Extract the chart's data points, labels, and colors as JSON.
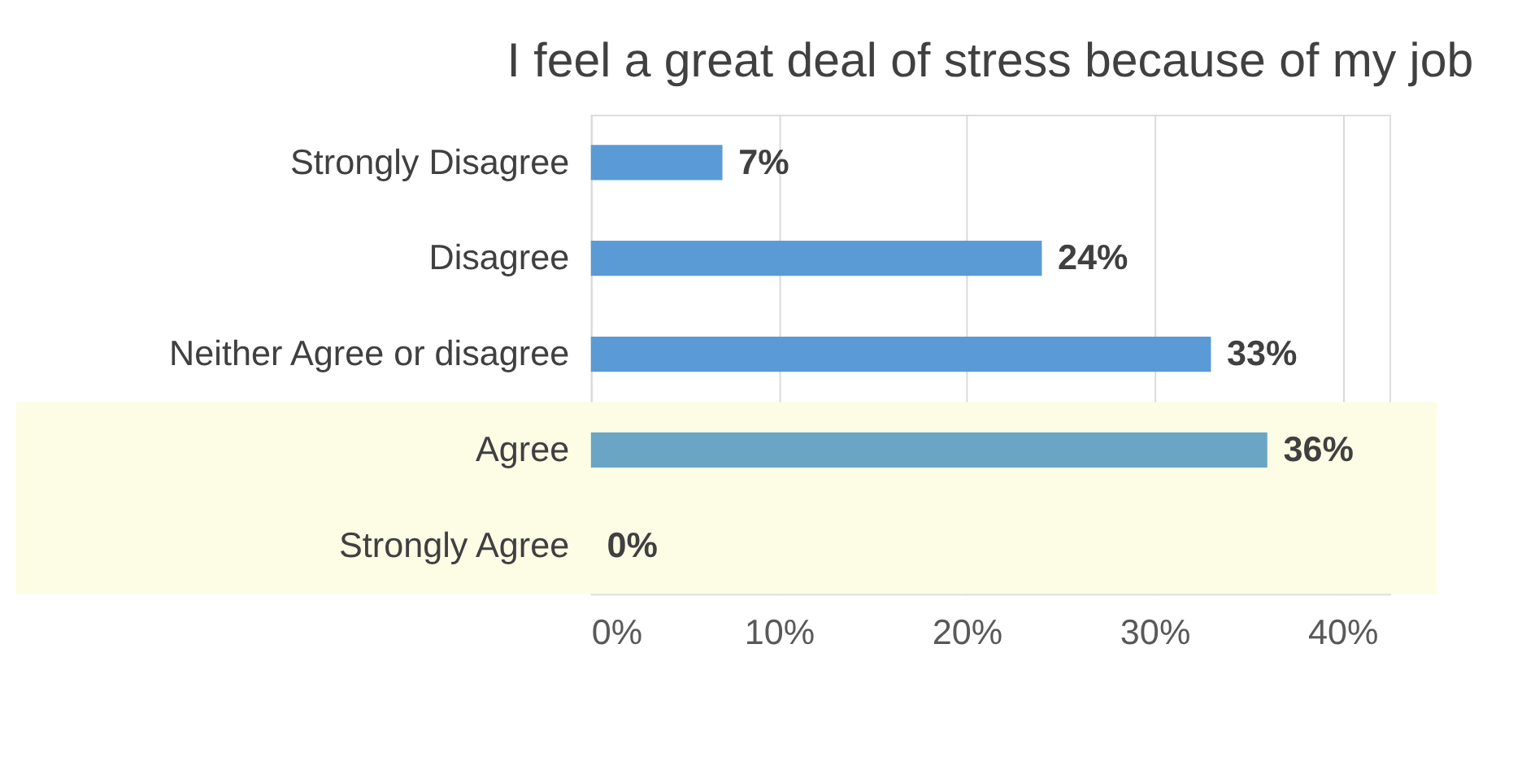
{
  "chart_data": {
    "type": "bar",
    "orientation": "horizontal",
    "title": "I feel a great deal of stress because of my job",
    "categories": [
      "Strongly Disagree",
      "Disagree",
      "Neither Agree or disagree",
      "Agree",
      "Strongly Agree"
    ],
    "values": [
      7,
      24,
      33,
      36,
      0
    ],
    "colors": [
      "#5b9bd5",
      "#5b9bd5",
      "#5b9bd5",
      "#6ba5c4",
      "#6ba5c4"
    ],
    "value_labels": [
      "7%",
      "24%",
      "33%",
      "36%",
      "0%"
    ],
    "xlim": [
      0,
      42.5
    ],
    "xticks": [
      {
        "value": 0,
        "label": "0%"
      },
      {
        "value": 10,
        "label": "10%"
      },
      {
        "value": 20,
        "label": "20%"
      },
      {
        "value": 30,
        "label": "30%"
      },
      {
        "value": 40,
        "label": "40%"
      }
    ],
    "grid": "x",
    "bands": [
      {
        "axis": "y",
        "from": "Agree",
        "to": "Strongly Agree",
        "color": "#fdfde6"
      }
    ]
  }
}
